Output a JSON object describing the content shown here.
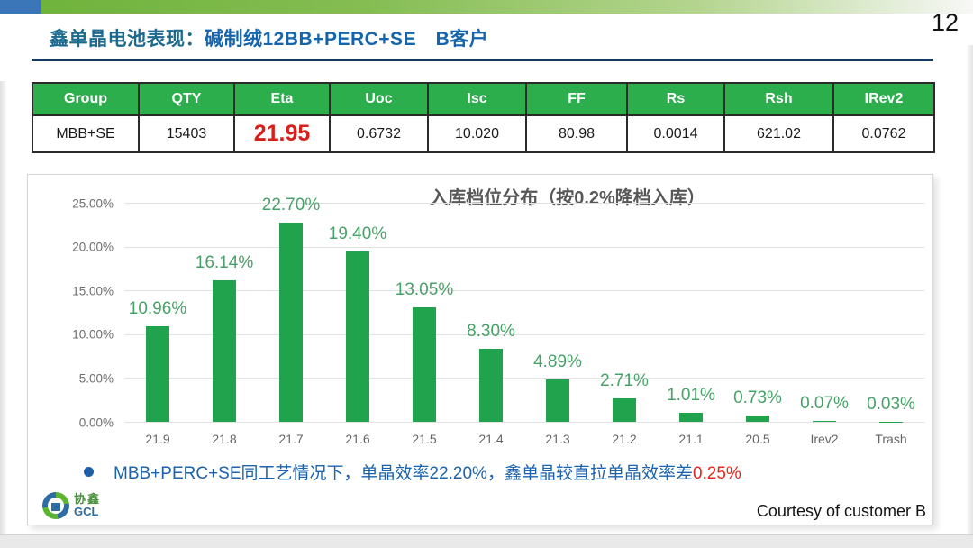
{
  "page": {
    "number": "12"
  },
  "header": {
    "title_part1": "鑫单晶电池表现：",
    "title_part2": "碱制绒12BB+PERC+SE　B客户"
  },
  "table": {
    "headers": [
      "Group",
      "QTY",
      "Eta",
      "Uoc",
      "Isc",
      "FF",
      "Rs",
      "Rsh",
      "IRev2"
    ],
    "row": [
      "MBB+SE",
      "15403",
      "21.95",
      "0.6732",
      "10.020",
      "80.98",
      "0.0014",
      "621.02",
      "0.0762"
    ],
    "highlight_column": "Eta",
    "highlight_color": "#d91f1c",
    "header_color": "#2cae4c"
  },
  "chart_data": {
    "type": "bar",
    "title": "入库档位分布（按0.2%降档入库）",
    "categories": [
      "21.9",
      "21.8",
      "21.7",
      "21.6",
      "21.5",
      "21.4",
      "21.3",
      "21.2",
      "21.1",
      "20.5",
      "Irev2",
      "Trash"
    ],
    "values": [
      10.96,
      16.14,
      22.7,
      19.4,
      13.05,
      8.3,
      4.89,
      2.71,
      1.01,
      0.73,
      0.07,
      0.03
    ],
    "data_labels": [
      "10.96%",
      "16.14%",
      "22.70%",
      "19.40%",
      "13.05%",
      "8.30%",
      "4.89%",
      "2.71%",
      "1.01%",
      "0.73%",
      "0.07%",
      "0.03%"
    ],
    "xlabel": "",
    "ylabel": "",
    "ylim": [
      0,
      25
    ],
    "yticks": [
      "25.00%",
      "20.00%",
      "15.00%",
      "10.00%",
      "5.00%",
      "0.00%"
    ],
    "grid": true,
    "legend": false,
    "bar_color": "#21a24d",
    "label_color": "#48a168"
  },
  "footnote": {
    "text_blue": "MBB+PERC+SE同工艺情况下，单晶效率22.20%，鑫单晶较直拉单晶效率差",
    "text_red": "0.25%"
  },
  "footer": {
    "courtesy": "Courtesy of customer B",
    "logo_cn": "协鑫",
    "logo_en": "GCL"
  }
}
